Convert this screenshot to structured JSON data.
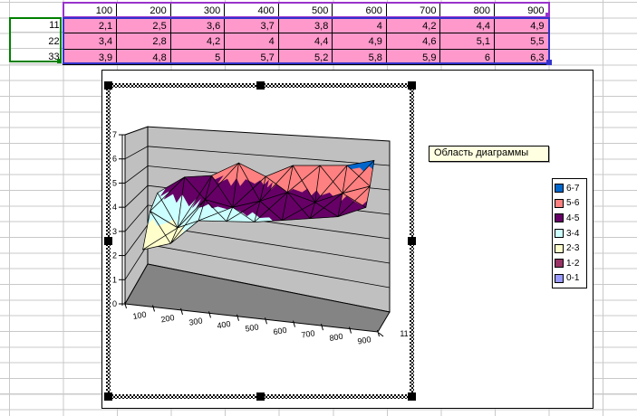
{
  "sheet": {
    "column_headers": [
      "100",
      "200",
      "300",
      "400",
      "500",
      "600",
      "700",
      "800",
      "900"
    ],
    "rows": [
      {
        "label": "11",
        "values": [
          "2,1",
          "2,5",
          "3,6",
          "3,7",
          "3,8",
          "4",
          "4,2",
          "4,4",
          "4,9"
        ]
      },
      {
        "label": "22",
        "values": [
          "3,4",
          "2,8",
          "4,2",
          "4",
          "4,4",
          "4,9",
          "4,6",
          "5,1",
          "5,5"
        ]
      },
      {
        "label": "33",
        "values": [
          "3,9",
          "4,8",
          "5",
          "5,7",
          "5,2",
          "5,8",
          "5,9",
          "6",
          "6,3"
        ]
      }
    ],
    "colors": {
      "data_fill": "#FF99CC",
      "grid_line": "#C9C9C9",
      "range_data_border": "#3333CC",
      "range_category_border": "#9933CC",
      "range_series_border": "#008000"
    }
  },
  "chart": {
    "tooltip": "Область диаграммы",
    "series_axis_label": "11",
    "value_axis_ticks": [
      "0",
      "1",
      "2",
      "3",
      "4",
      "5",
      "6",
      "7"
    ],
    "category_axis_labels": [
      "100",
      "200",
      "300",
      "400",
      "500",
      "600",
      "700",
      "800",
      "900"
    ],
    "legend": [
      {
        "label": "6-7",
        "color": "#0066CC"
      },
      {
        "label": "5-6",
        "color": "#FF8080"
      },
      {
        "label": "4-5",
        "color": "#660066"
      },
      {
        "label": "3-4",
        "color": "#CCFFFF"
      },
      {
        "label": "2-3",
        "color": "#FFFFCC"
      },
      {
        "label": "1-2",
        "color": "#993366"
      },
      {
        "label": "0-1",
        "color": "#9999FF"
      }
    ],
    "colors": {
      "wall": "#C0C0C0",
      "floor": "#848484",
      "chart_bg": "#FFFFFF",
      "tooltip_bg": "#FFFFE1"
    }
  },
  "chart_data": {
    "type": "surface",
    "title": "",
    "categories": [
      100,
      200,
      300,
      400,
      500,
      600,
      700,
      800,
      900
    ],
    "series": [
      {
        "name": "11",
        "values": [
          2.1,
          2.5,
          3.6,
          3.7,
          3.8,
          4.0,
          4.2,
          4.4,
          4.9
        ]
      },
      {
        "name": "22",
        "values": [
          3.4,
          2.8,
          4.2,
          4.0,
          4.4,
          4.9,
          4.6,
          5.1,
          5.5
        ]
      },
      {
        "name": "33",
        "values": [
          3.9,
          4.8,
          5.0,
          5.7,
          5.2,
          5.8,
          5.9,
          6.0,
          6.3
        ]
      }
    ],
    "zlim": [
      0,
      7
    ],
    "band_colors_low_to_high": [
      "#9999FF",
      "#993366",
      "#FFFFCC",
      "#CCFFFF",
      "#660066",
      "#FF8080",
      "#0066CC"
    ],
    "legend_position": "right",
    "grid": true
  }
}
